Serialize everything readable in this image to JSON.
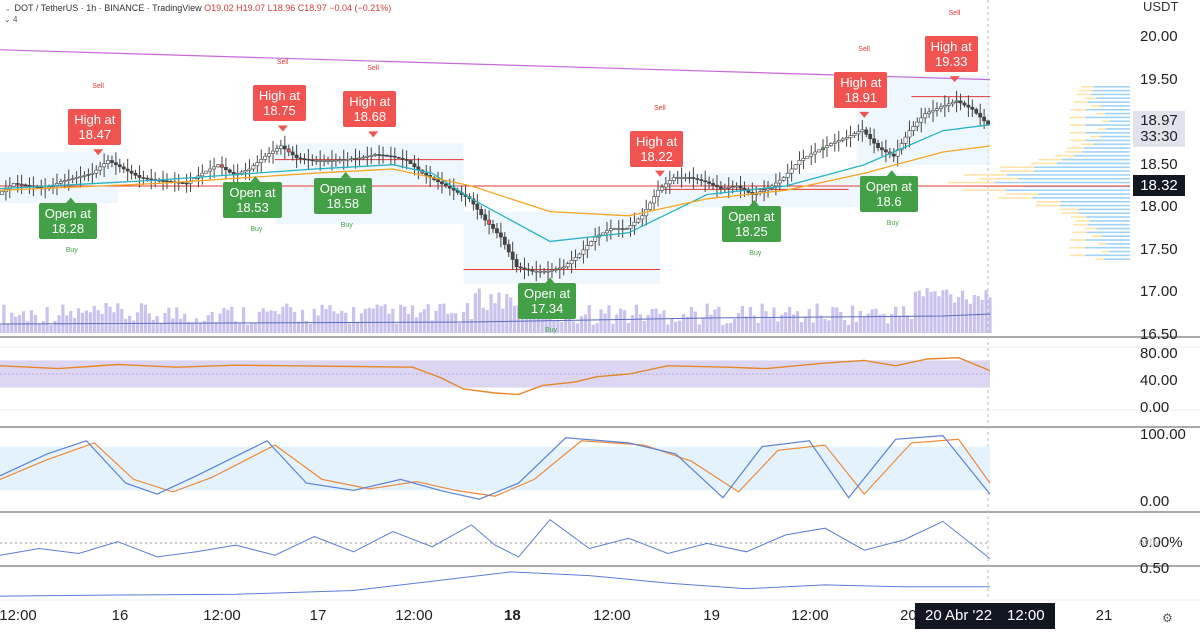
{
  "header": {
    "symbol_line": "DOT / TetherUS · 1h · BINANCE · TradingView",
    "ohlc": "O19.02 H19.07 L18.96 C18.97 −0.04 (−0.21%)",
    "indicator_count": "4"
  },
  "currency": "USDT",
  "colors": {
    "up": "#26a69a",
    "down": "#ef5350",
    "candle_dark": "#444444",
    "candle_green": "#4caf50",
    "candle_red": "#f05350",
    "sell_label": "#f05350",
    "buy_label": "#43a047",
    "ema_fast": "#26b3c2",
    "ema_slow": "#f5a623",
    "trend_line": "#c76ad8",
    "support_line": "#e53935",
    "volume": "#c9c2ee",
    "rsi_line": "#e5882b",
    "rsi_band": "#ddd6f3",
    "stoch_k": "#5c83d6",
    "stoch_d": "#f08a3c",
    "stoch_band": "#e3f2fd",
    "osc_line": "#5c7bd6"
  },
  "chart_data": {
    "type": "candlestick",
    "title": "DOT / TetherUS · 1h · BINANCE",
    "ylim": [
      16.5,
      20.2
    ],
    "y_ticks": [
      "20.00",
      "19.50",
      "18.50",
      "18.00",
      "17.50",
      "17.00",
      "16.50"
    ],
    "x_tick_labels": [
      {
        "label": "12:00",
        "at": 0.015,
        "bold": false
      },
      {
        "label": "16",
        "at": 0.1,
        "bold": false
      },
      {
        "label": "12:00",
        "at": 0.185,
        "bold": false
      },
      {
        "label": "17",
        "at": 0.265,
        "bold": false
      },
      {
        "label": "12:00",
        "at": 0.345,
        "bold": false
      },
      {
        "label": "18",
        "at": 0.427,
        "bold": true
      },
      {
        "label": "12:00",
        "at": 0.51,
        "bold": false
      },
      {
        "label": "19",
        "at": 0.593,
        "bold": false
      },
      {
        "label": "12:00",
        "at": 0.675,
        "bold": false
      },
      {
        "label": "20",
        "at": 0.757,
        "bold": false
      },
      {
        "label": "21",
        "at": 0.92,
        "bold": false
      }
    ],
    "current_price": "18.97",
    "countdown": "33:30",
    "level_price": "18.32",
    "crosshair_date": "20 Abr '22",
    "crosshair_time": "12:00",
    "close_points": [
      [
        0,
        18.15
      ],
      [
        4,
        18.28
      ],
      [
        8,
        18.25
      ],
      [
        12,
        18.22
      ],
      [
        16,
        18.3
      ],
      [
        20,
        18.35
      ],
      [
        24,
        18.4
      ],
      [
        28,
        18.55
      ],
      [
        32,
        18.45
      ],
      [
        36,
        18.35
      ],
      [
        40,
        18.32
      ],
      [
        44,
        18.3
      ],
      [
        48,
        18.28
      ],
      [
        52,
        18.4
      ],
      [
        56,
        18.5
      ],
      [
        60,
        18.38
      ],
      [
        64,
        18.45
      ],
      [
        68,
        18.6
      ],
      [
        72,
        18.72
      ],
      [
        76,
        18.58
      ],
      [
        80,
        18.55
      ],
      [
        84,
        18.55
      ],
      [
        88,
        18.56
      ],
      [
        92,
        18.58
      ],
      [
        96,
        18.62
      ],
      [
        100,
        18.6
      ],
      [
        104,
        18.55
      ],
      [
        108,
        18.4
      ],
      [
        112,
        18.3
      ],
      [
        116,
        18.2
      ],
      [
        120,
        18.1
      ],
      [
        124,
        17.85
      ],
      [
        128,
        17.65
      ],
      [
        132,
        17.3
      ],
      [
        136,
        17.25
      ],
      [
        140,
        17.25
      ],
      [
        144,
        17.3
      ],
      [
        148,
        17.45
      ],
      [
        152,
        17.65
      ],
      [
        156,
        17.75
      ],
      [
        160,
        17.75
      ],
      [
        164,
        17.9
      ],
      [
        168,
        18.2
      ],
      [
        172,
        18.35
      ],
      [
        176,
        18.35
      ],
      [
        180,
        18.3
      ],
      [
        184,
        18.22
      ],
      [
        188,
        18.25
      ],
      [
        192,
        18.15
      ],
      [
        196,
        18.22
      ],
      [
        200,
        18.35
      ],
      [
        204,
        18.55
      ],
      [
        208,
        18.65
      ],
      [
        212,
        18.75
      ],
      [
        216,
        18.82
      ],
      [
        220,
        18.91
      ],
      [
        224,
        18.7
      ],
      [
        228,
        18.6
      ],
      [
        232,
        18.9
      ],
      [
        236,
        19.1
      ],
      [
        240,
        19.18
      ],
      [
        244,
        19.25
      ],
      [
        248,
        19.15
      ],
      [
        252,
        18.97
      ]
    ],
    "series": [
      {
        "name": "EMA fast",
        "values": [
          [
            0,
            18.22
          ],
          [
            40,
            18.32
          ],
          [
            80,
            18.45
          ],
          [
            100,
            18.5
          ],
          [
            110,
            18.4
          ],
          [
            120,
            18.1
          ],
          [
            140,
            17.6
          ],
          [
            160,
            17.7
          ],
          [
            180,
            18.15
          ],
          [
            200,
            18.25
          ],
          [
            220,
            18.5
          ],
          [
            240,
            18.9
          ],
          [
            252,
            18.97
          ]
        ]
      },
      {
        "name": "EMA slow",
        "values": [
          [
            0,
            18.2
          ],
          [
            40,
            18.28
          ],
          [
            80,
            18.4
          ],
          [
            100,
            18.45
          ],
          [
            120,
            18.25
          ],
          [
            140,
            17.95
          ],
          [
            160,
            17.9
          ],
          [
            180,
            18.1
          ],
          [
            200,
            18.2
          ],
          [
            220,
            18.4
          ],
          [
            240,
            18.65
          ],
          [
            252,
            18.72
          ]
        ]
      }
    ],
    "trend_line": [
      [
        0,
        19.85
      ],
      [
        252,
        19.5
      ]
    ],
    "support_levels": [
      {
        "from": 70,
        "to": 118,
        "y": 18.56
      },
      {
        "from": 118,
        "to": 168,
        "y": 17.27
      },
      {
        "from": 168,
        "to": 216,
        "y": 18.21
      },
      {
        "from": 232,
        "to": 252,
        "y": 19.3
      }
    ],
    "labels": [
      {
        "kind": "sell",
        "text": "High at\n18.47",
        "x": 25,
        "price": 18.47
      },
      {
        "kind": "sell",
        "text": "High at\n18.75",
        "x": 72,
        "price": 18.75
      },
      {
        "kind": "sell",
        "text": "High at\n18.68",
        "x": 95,
        "price": 18.68
      },
      {
        "kind": "sell",
        "text": "High at\n18.22",
        "x": 168,
        "price": 18.22
      },
      {
        "kind": "sell",
        "text": "High at\n18.91",
        "x": 220,
        "price": 18.91
      },
      {
        "kind": "sell",
        "text": "High at\n19.33",
        "x": 243,
        "price": 19.33
      },
      {
        "kind": "buy",
        "text": "Open at\n18.28",
        "x": 18,
        "price": 18.28
      },
      {
        "kind": "buy",
        "text": "Open at\n18.53",
        "x": 65,
        "price": 18.53
      },
      {
        "kind": "buy",
        "text": "Open at\n18.58",
        "x": 88,
        "price": 18.58
      },
      {
        "kind": "buy",
        "text": "Open at\n17.34",
        "x": 140,
        "price": 17.34
      },
      {
        "kind": "buy",
        "text": "Open at\n18.25",
        "x": 192,
        "price": 18.25
      },
      {
        "kind": "buy",
        "text": "Open at\n18.6",
        "x": 227,
        "price": 18.6
      }
    ],
    "rsi": {
      "ticks": [
        "80.00",
        "40.00",
        "0.00"
      ],
      "band": [
        30,
        70
      ],
      "values": [
        [
          0,
          62
        ],
        [
          15,
          58
        ],
        [
          30,
          64
        ],
        [
          45,
          60
        ],
        [
          60,
          63
        ],
        [
          75,
          62
        ],
        [
          90,
          61
        ],
        [
          105,
          60
        ],
        [
          112,
          45
        ],
        [
          118,
          28
        ],
        [
          126,
          22
        ],
        [
          132,
          20
        ],
        [
          138,
          33
        ],
        [
          146,
          38
        ],
        [
          152,
          46
        ],
        [
          160,
          50
        ],
        [
          170,
          62
        ],
        [
          185,
          60
        ],
        [
          195,
          58
        ],
        [
          210,
          66
        ],
        [
          220,
          70
        ],
        [
          228,
          62
        ],
        [
          236,
          72
        ],
        [
          244,
          74
        ],
        [
          252,
          55
        ]
      ]
    },
    "stoch": {
      "ticks": [
        "100.00",
        "0.00"
      ],
      "band": [
        20,
        80
      ],
      "k": [
        [
          0,
          40
        ],
        [
          12,
          70
        ],
        [
          22,
          88
        ],
        [
          32,
          30
        ],
        [
          40,
          15
        ],
        [
          50,
          40
        ],
        [
          68,
          88
        ],
        [
          78,
          30
        ],
        [
          90,
          20
        ],
        [
          102,
          35
        ],
        [
          112,
          20
        ],
        [
          122,
          8
        ],
        [
          132,
          30
        ],
        [
          144,
          92
        ],
        [
          160,
          85
        ],
        [
          172,
          70
        ],
        [
          184,
          10
        ],
        [
          194,
          80
        ],
        [
          206,
          88
        ],
        [
          216,
          10
        ],
        [
          228,
          90
        ],
        [
          240,
          95
        ],
        [
          252,
          15
        ]
      ],
      "d": [
        [
          0,
          35
        ],
        [
          12,
          62
        ],
        [
          24,
          85
        ],
        [
          34,
          35
        ],
        [
          44,
          18
        ],
        [
          54,
          38
        ],
        [
          70,
          82
        ],
        [
          82,
          35
        ],
        [
          94,
          22
        ],
        [
          106,
          32
        ],
        [
          116,
          20
        ],
        [
          126,
          12
        ],
        [
          136,
          35
        ],
        [
          148,
          88
        ],
        [
          164,
          82
        ],
        [
          176,
          60
        ],
        [
          188,
          18
        ],
        [
          198,
          75
        ],
        [
          210,
          82
        ],
        [
          220,
          15
        ],
        [
          232,
          85
        ],
        [
          244,
          90
        ],
        [
          252,
          30
        ]
      ]
    },
    "osc": {
      "ticks": [
        "0.00%",
        "0.50"
      ],
      "values": [
        [
          0,
          0.4
        ],
        [
          10,
          0.8
        ],
        [
          20,
          0.5
        ],
        [
          30,
          1.2
        ],
        [
          40,
          0.3
        ],
        [
          50,
          0.6
        ],
        [
          60,
          1.0
        ],
        [
          70,
          0.4
        ],
        [
          80,
          1.5
        ],
        [
          90,
          0.6
        ],
        [
          100,
          1.8
        ],
        [
          110,
          0.9
        ],
        [
          120,
          2.2
        ],
        [
          126,
          1.0
        ],
        [
          132,
          0.3
        ],
        [
          140,
          2.5
        ],
        [
          150,
          0.8
        ],
        [
          160,
          1.4
        ],
        [
          170,
          0.5
        ],
        [
          180,
          1.1
        ],
        [
          190,
          0.6
        ],
        [
          200,
          1.6
        ],
        [
          210,
          2.0
        ],
        [
          220,
          0.7
        ],
        [
          230,
          1.3
        ],
        [
          240,
          2.4
        ],
        [
          252,
          0.2
        ]
      ]
    },
    "osc_slow": {
      "values": [
        [
          0,
          0.05
        ],
        [
          30,
          0.08
        ],
        [
          60,
          0.1
        ],
        [
          90,
          0.2
        ],
        [
          110,
          0.45
        ],
        [
          130,
          0.7
        ],
        [
          150,
          0.6
        ],
        [
          170,
          0.4
        ],
        [
          190,
          0.25
        ],
        [
          210,
          0.35
        ],
        [
          230,
          0.3
        ],
        [
          252,
          0.3
        ]
      ]
    }
  }
}
